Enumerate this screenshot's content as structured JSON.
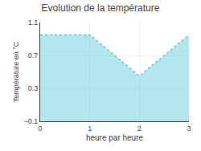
{
  "chart_data": {
    "type": "area",
    "title": "Evolution de la température",
    "x_label": "heure par heure",
    "y_label": "Température en °C",
    "x": [
      0,
      1,
      2,
      3
    ],
    "values": [
      0.95,
      0.95,
      0.45,
      0.95
    ],
    "color": "#5bc8d8",
    "line_style": "dotted",
    "xlim": [
      0,
      3
    ],
    "xticks": [
      0,
      1,
      2,
      3
    ],
    "ylim": [
      -0.1,
      1.1
    ],
    "yticks": [
      -0.1,
      0.3,
      0.7,
      1.1
    ],
    "grid": true
  }
}
